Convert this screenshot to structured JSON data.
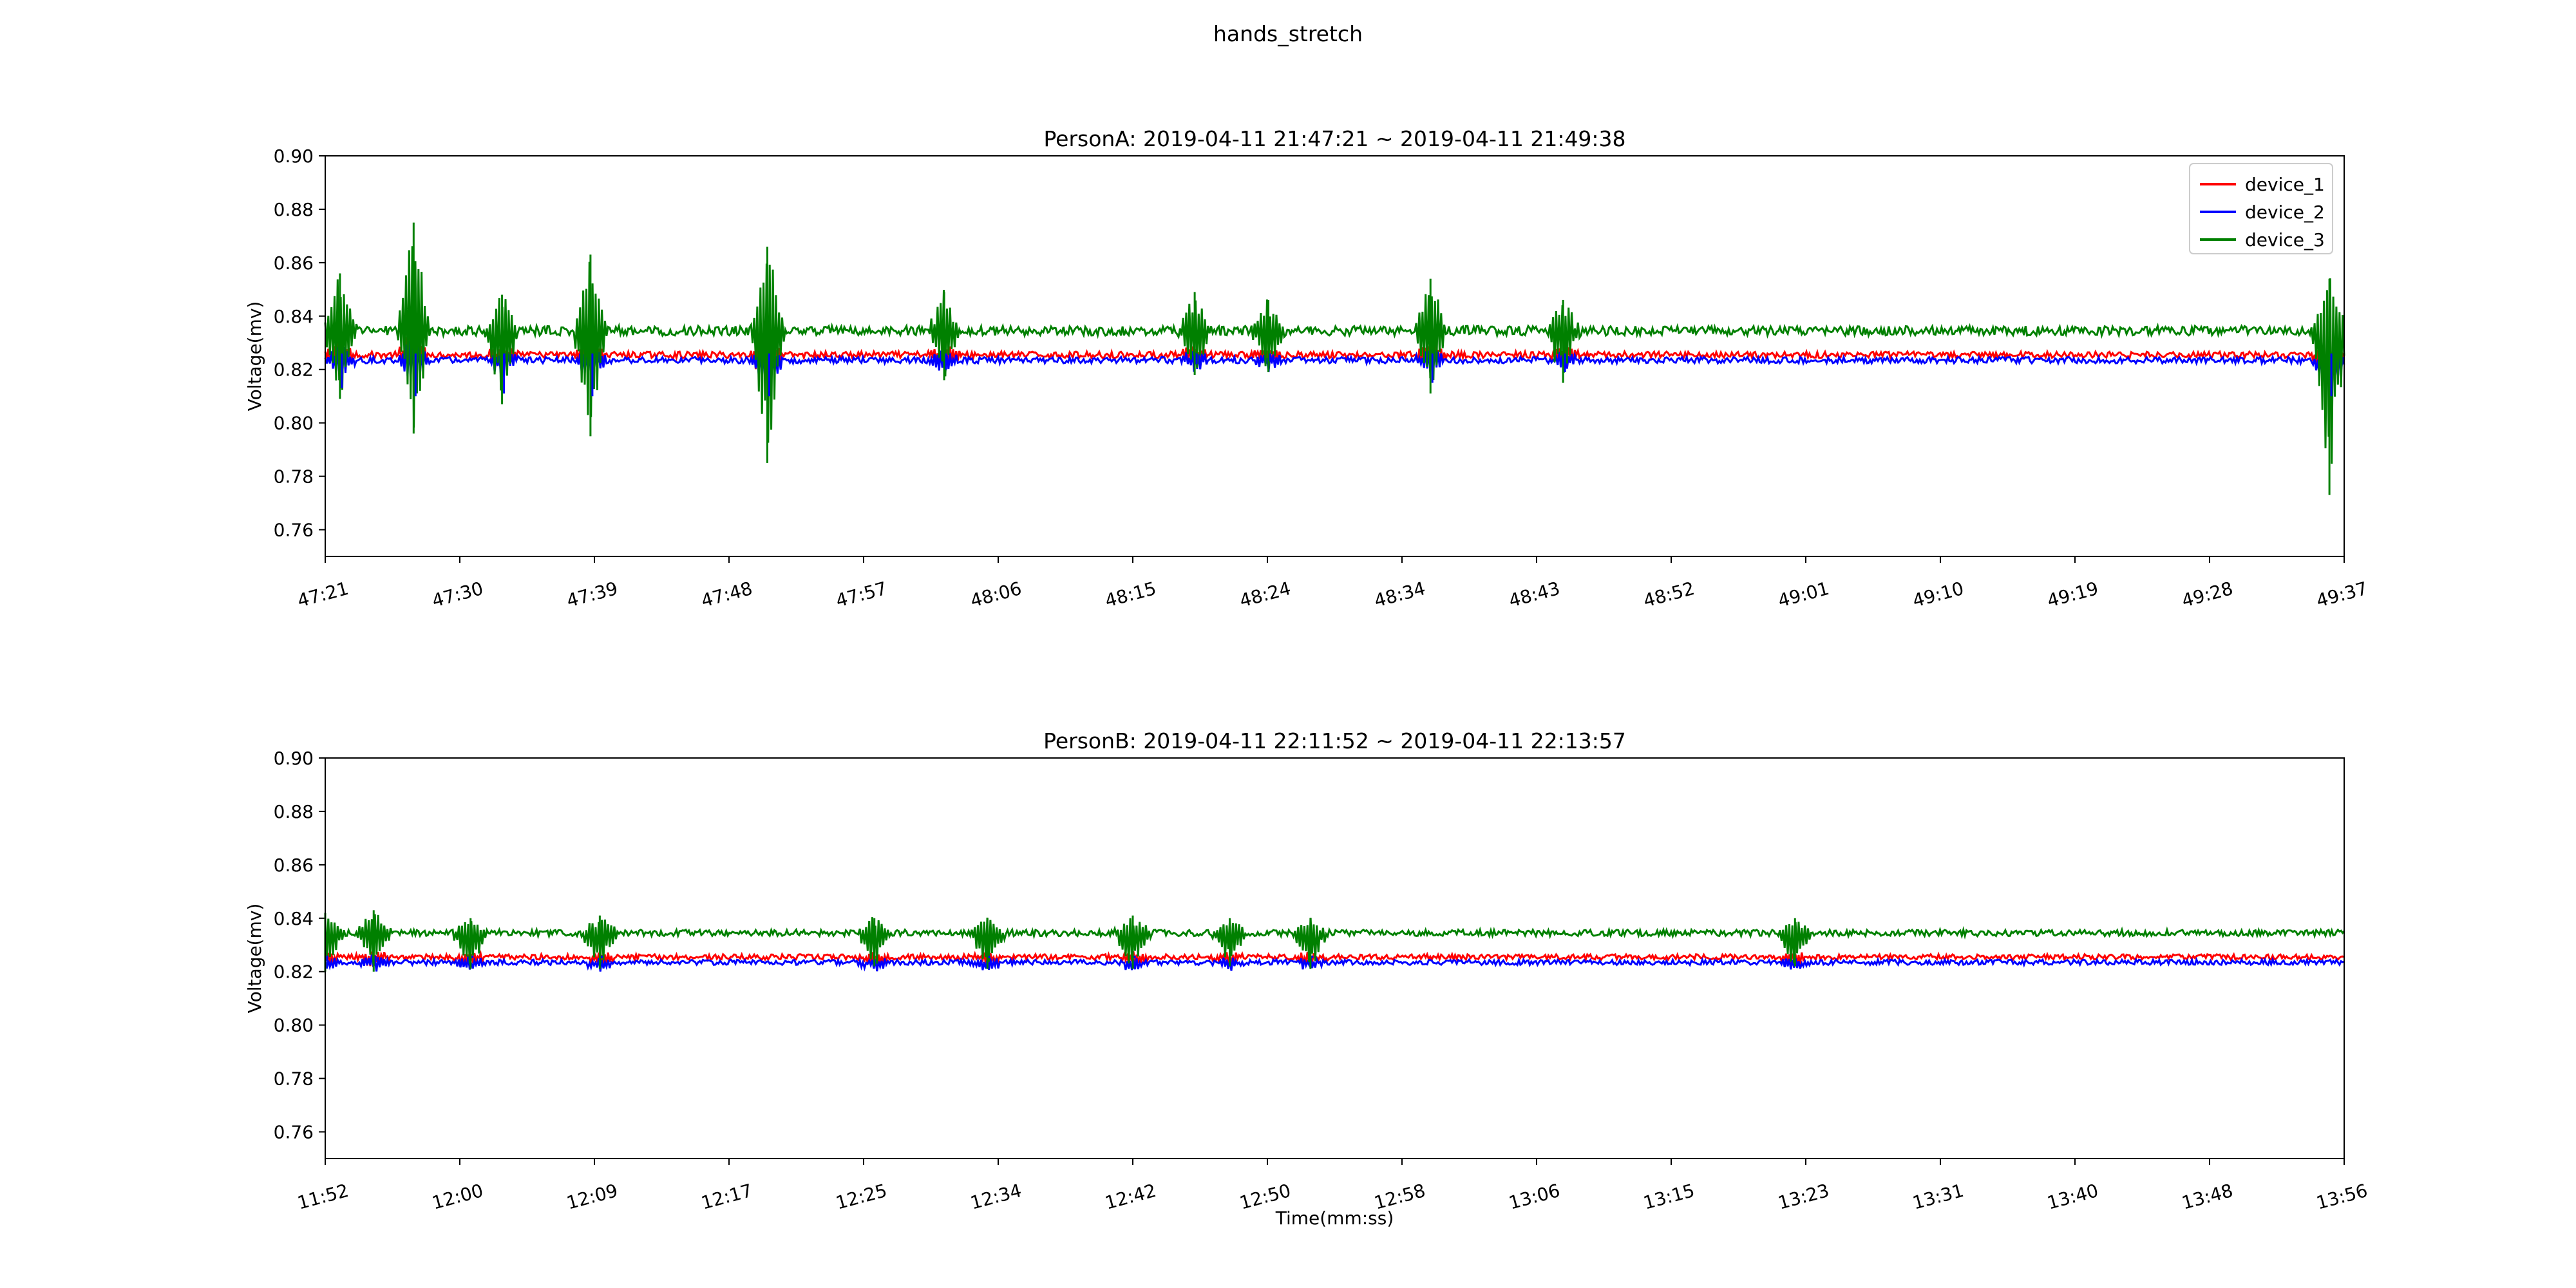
{
  "figure": {
    "suptitle": "hands_stretch"
  },
  "colors": {
    "device_1": "#ff0000",
    "device_2": "#0000ff",
    "device_3": "#008000"
  },
  "chart_data": [
    {
      "type": "line",
      "title": "PersonA: 2019-04-11 21:47:21 ~ 2019-04-11 21:49:38",
      "xlabel": "",
      "ylabel": "Voltage(mv)",
      "ylim": [
        0.75,
        0.9
      ],
      "yticks": [
        "0.90",
        "0.88",
        "0.86",
        "0.84",
        "0.82",
        "0.80",
        "0.78",
        "0.76"
      ],
      "xticks": [
        "47:21",
        "47:30",
        "47:39",
        "47:48",
        "47:57",
        "48:06",
        "48:15",
        "48:24",
        "48:34",
        "48:43",
        "48:52",
        "49:01",
        "49:10",
        "49:19",
        "49:28",
        "49:37"
      ],
      "xlim": [
        "47:21",
        "49:38"
      ],
      "legend": {
        "position": "top-right",
        "entries": [
          "device_1",
          "device_2",
          "device_3"
        ]
      },
      "series": [
        {
          "name": "device_1",
          "baseline": 0.8255,
          "noise": 0.0012
        },
        {
          "name": "device_2",
          "baseline": 0.8235,
          "noise": 0.0012
        },
        {
          "name": "device_3",
          "baseline": 0.8345,
          "noise": 0.0018
        }
      ],
      "events": [
        {
          "time": "47:22",
          "max": 0.856,
          "min": 0.809
        },
        {
          "time": "47:27",
          "max": 0.875,
          "min": 0.796
        },
        {
          "time": "47:33",
          "max": 0.848,
          "min": 0.807
        },
        {
          "time": "47:39",
          "max": 0.863,
          "min": 0.795
        },
        {
          "time": "47:51",
          "max": 0.866,
          "min": 0.785
        },
        {
          "time": "48:03",
          "max": 0.849,
          "min": 0.816
        },
        {
          "time": "48:20",
          "max": 0.849,
          "min": 0.818
        },
        {
          "time": "48:25",
          "max": 0.846,
          "min": 0.819
        },
        {
          "time": "48:36",
          "max": 0.854,
          "min": 0.811
        },
        {
          "time": "48:45",
          "max": 0.846,
          "min": 0.815
        },
        {
          "time": "49:37",
          "max": 0.854,
          "min": 0.773
        }
      ]
    },
    {
      "type": "line",
      "title": "PersonB: 2019-04-11 22:11:52 ~ 2019-04-11 22:13:57",
      "xlabel": "Time(mm:ss)",
      "ylabel": "Voltage(mv)",
      "ylim": [
        0.75,
        0.9
      ],
      "yticks": [
        "0.90",
        "0.88",
        "0.86",
        "0.84",
        "0.82",
        "0.80",
        "0.78",
        "0.76"
      ],
      "xticks": [
        "11:52",
        "12:00",
        "12:09",
        "12:17",
        "12:25",
        "12:34",
        "12:42",
        "12:50",
        "12:58",
        "13:06",
        "13:15",
        "13:23",
        "13:31",
        "13:40",
        "13:48",
        "13:56"
      ],
      "xlim": [
        "11:52",
        "13:57"
      ],
      "legend": null,
      "series": [
        {
          "name": "device_1",
          "baseline": 0.8255,
          "noise": 0.001
        },
        {
          "name": "device_2",
          "baseline": 0.8235,
          "noise": 0.001
        },
        {
          "name": "device_3",
          "baseline": 0.8345,
          "noise": 0.0012
        }
      ],
      "events": [
        {
          "time": "11:52",
          "max": 0.842,
          "min": 0.82
        },
        {
          "time": "11:55",
          "max": 0.843,
          "min": 0.82
        },
        {
          "time": "12:01",
          "max": 0.84,
          "min": 0.821
        },
        {
          "time": "12:09",
          "max": 0.841,
          "min": 0.821
        },
        {
          "time": "12:26",
          "max": 0.84,
          "min": 0.822
        },
        {
          "time": "12:33",
          "max": 0.84,
          "min": 0.821
        },
        {
          "time": "12:42",
          "max": 0.841,
          "min": 0.821
        },
        {
          "time": "12:48",
          "max": 0.84,
          "min": 0.822
        },
        {
          "time": "12:53",
          "max": 0.84,
          "min": 0.821
        },
        {
          "time": "13:23",
          "max": 0.84,
          "min": 0.822
        }
      ]
    }
  ]
}
